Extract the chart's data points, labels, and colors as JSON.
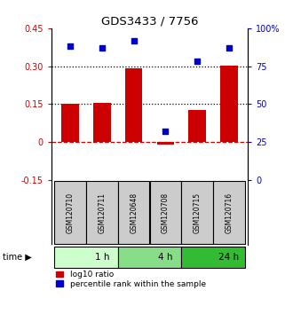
{
  "title": "GDS3433 / 7756",
  "samples": [
    "GSM120710",
    "GSM120711",
    "GSM120648",
    "GSM120708",
    "GSM120715",
    "GSM120716"
  ],
  "log10_ratio": [
    0.15,
    0.156,
    0.291,
    -0.01,
    0.126,
    0.301
  ],
  "percentile_rank": [
    88,
    87,
    92,
    32,
    78,
    87
  ],
  "bar_color": "#cc0000",
  "dot_color": "#0000cc",
  "ylim_left": [
    -0.15,
    0.45
  ],
  "ylim_right": [
    0,
    100
  ],
  "yticks_left": [
    -0.15,
    0.0,
    0.15,
    0.3,
    0.45
  ],
  "yticks_right": [
    0,
    25,
    50,
    75,
    100
  ],
  "ytick_labels_left": [
    "-0.15",
    "0",
    "0.15",
    "0.30",
    "0.45"
  ],
  "ytick_labels_right": [
    "0",
    "25",
    "50",
    "75",
    "100%"
  ],
  "hline_dotted": [
    0.15,
    0.3
  ],
  "hline_dashed_red": 0.0,
  "time_groups": [
    {
      "label": "1 h",
      "start": 0,
      "end": 2,
      "color": "#ccffcc"
    },
    {
      "label": "4 h",
      "start": 2,
      "end": 4,
      "color": "#88dd88"
    },
    {
      "label": "24 h",
      "start": 4,
      "end": 6,
      "color": "#33bb33"
    }
  ],
  "legend_bar_label": "log10 ratio",
  "legend_dot_label": "percentile rank within the sample",
  "bar_width": 0.55,
  "bg_color": "#ffffff",
  "sample_box_color": "#cccccc",
  "sample_box_border": "#000000",
  "fig_width": 3.21,
  "fig_height": 3.54,
  "dpi": 100
}
